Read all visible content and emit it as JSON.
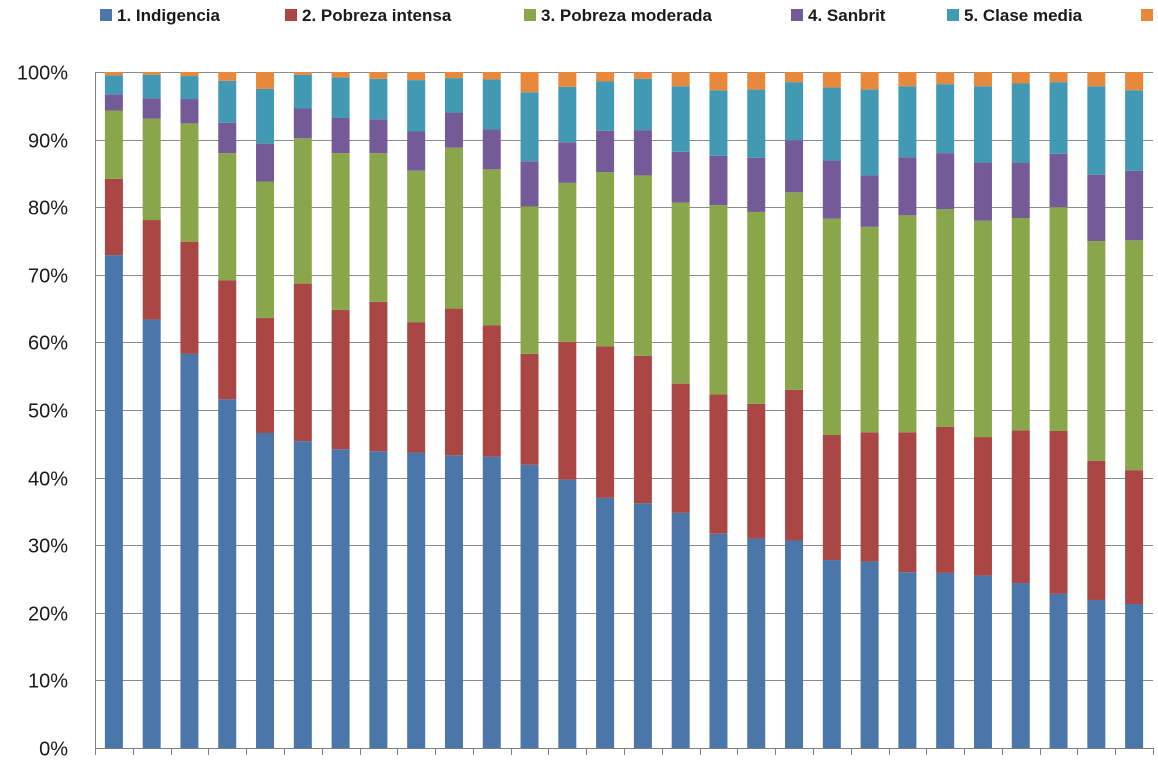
{
  "chart_data": {
    "type": "bar",
    "stacked": true,
    "percent_stacked": true,
    "title": "",
    "xlabel": "",
    "ylabel": "",
    "ylim": [
      0,
      100
    ],
    "y_ticks": [
      "0%",
      "10%",
      "20%",
      "30%",
      "40%",
      "50%",
      "60%",
      "70%",
      "80%",
      "90%",
      "100%"
    ],
    "grid": true,
    "legend_position": "top",
    "categories": [
      "",
      "",
      "",
      "",
      "",
      "",
      "",
      "",
      "",
      "",
      "",
      "",
      "",
      "",
      "",
      "",
      "",
      "",
      "",
      "",
      "",
      "",
      "",
      "",
      "",
      "",
      "",
      ""
    ],
    "series": [
      {
        "name": "1. Indigencia",
        "color": "#4a76aa",
        "values": [
          72.9,
          63.4,
          58.3,
          51.6,
          46.6,
          45.4,
          44.2,
          43.9,
          43.7,
          43.3,
          43.1,
          41.9,
          39.7,
          37.0,
          36.2,
          34.8,
          31.7,
          31.0,
          30.7,
          27.8,
          27.6,
          26.0,
          25.9,
          25.5,
          24.4,
          22.8,
          21.9,
          21.3
        ]
      },
      {
        "name": "2. Pobreza intensa",
        "color": "#aa4644",
        "values": [
          11.3,
          14.7,
          16.6,
          17.6,
          17.0,
          23.3,
          20.6,
          22.1,
          19.3,
          21.7,
          19.4,
          16.4,
          20.4,
          22.4,
          21.8,
          19.1,
          20.6,
          19.9,
          22.3,
          18.5,
          19.1,
          20.7,
          21.6,
          20.5,
          22.6,
          24.1,
          20.6,
          19.8
        ]
      },
      {
        "name": "3. Pobreza moderada",
        "color": "#8aa64b",
        "values": [
          10.1,
          15.0,
          17.5,
          18.8,
          20.2,
          21.5,
          23.2,
          22.0,
          22.4,
          23.8,
          23.1,
          21.8,
          23.5,
          25.8,
          26.7,
          26.8,
          28.0,
          28.4,
          29.2,
          32.0,
          30.4,
          32.1,
          32.2,
          32.0,
          31.4,
          33.1,
          32.5,
          34.0
        ]
      },
      {
        "name": "4. Sanbrit",
        "color": "#745b98",
        "values": [
          2.4,
          3.0,
          3.6,
          4.5,
          5.6,
          4.4,
          5.2,
          5.0,
          5.8,
          5.2,
          5.9,
          6.7,
          6.0,
          6.1,
          6.7,
          7.5,
          7.3,
          8.0,
          7.7,
          8.6,
          7.6,
          8.6,
          8.3,
          8.6,
          8.2,
          7.9,
          9.8,
          10.3
        ]
      },
      {
        "name": "5. Clase media",
        "color": "#4299b3",
        "values": [
          2.8,
          3.5,
          3.4,
          6.2,
          8.1,
          5.0,
          6.0,
          6.0,
          7.6,
          5.1,
          7.4,
          10.2,
          8.2,
          7.3,
          7.6,
          9.7,
          9.7,
          10.1,
          8.6,
          10.8,
          12.7,
          10.5,
          10.2,
          11.3,
          11.7,
          10.6,
          13.1,
          11.9
        ]
      },
      {
        "name": "",
        "color": "#e8883a",
        "values": [
          0.5,
          0.4,
          0.6,
          1.3,
          2.5,
          0.4,
          0.8,
          1.0,
          1.2,
          0.9,
          1.1,
          3.0,
          2.2,
          1.4,
          1.0,
          2.1,
          2.7,
          2.6,
          1.5,
          2.3,
          2.6,
          2.1,
          1.8,
          2.1,
          1.7,
          1.5,
          2.1,
          2.7
        ]
      }
    ]
  }
}
